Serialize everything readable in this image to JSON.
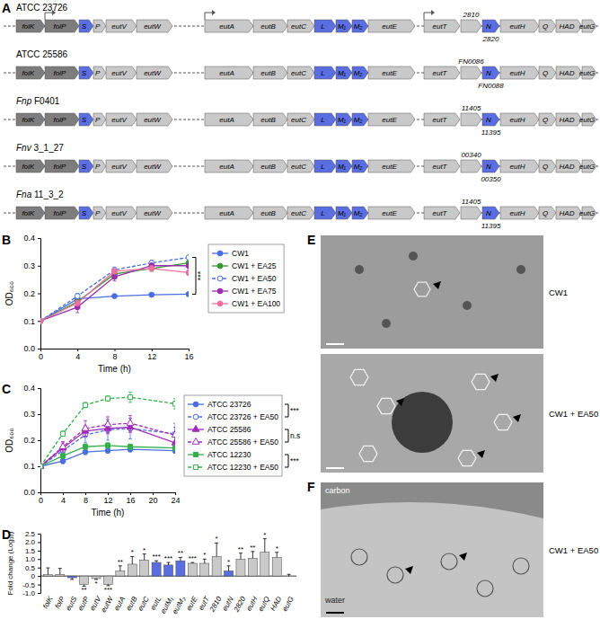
{
  "panel_labels": [
    "A",
    "B",
    "C",
    "D",
    "E",
    "F"
  ],
  "diagram": {
    "genes": [
      {
        "label": "folK",
        "color": "#7d7d7d"
      },
      {
        "label": "folP",
        "color": "#7d7d7d"
      },
      {
        "label": "S",
        "color": "#5b6ee1"
      },
      {
        "label": "P",
        "color": "#c9c9c9"
      },
      {
        "label": "eutV",
        "color": "#c9c9c9"
      },
      {
        "label": "eutW",
        "color": "#c9c9c9"
      },
      {
        "label": "eutA",
        "color": "#c9c9c9"
      },
      {
        "label": "eutB",
        "color": "#c9c9c9"
      },
      {
        "label": "eutC",
        "color": "#c9c9c9"
      },
      {
        "label": "L",
        "color": "#5b6ee1"
      },
      {
        "label": "M₁",
        "color": "#5b6ee1"
      },
      {
        "label": "M₂",
        "color": "#5b6ee1"
      },
      {
        "label": "eutE",
        "color": "#c9c9c9"
      },
      {
        "label": "eutT",
        "color": "#c9c9c9"
      },
      {
        "label": null,
        "color": "#c9c9c9"
      },
      {
        "label": "N",
        "color": "#5b6ee1"
      },
      {
        "label": "eutH",
        "color": "#c9c9c9"
      },
      {
        "label": "Q",
        "color": "#c9c9c9"
      },
      {
        "label": "HAD",
        "color": "#c9c9c9"
      },
      {
        "label": "eutG",
        "color": "#c9c9c9"
      }
    ],
    "strains": [
      {
        "name": "ATCC 23726",
        "locus_above": "2810",
        "locus_below": "2820"
      },
      {
        "name": "ATCC 25586",
        "locus_above": "FN0086",
        "locus_below": "FN0088"
      },
      {
        "name": "Fnp F0401",
        "locus_above": "11405",
        "locus_below": "11395"
      },
      {
        "name": "Fnv 3_1_27",
        "locus_above": "00340",
        "locus_below": "00350"
      },
      {
        "name": "Fna 11_3_2",
        "locus_above": "11405",
        "locus_below": "11395"
      }
    ]
  },
  "chart_data": [
    {
      "type": "line",
      "x": [
        0,
        4,
        8,
        12,
        16
      ],
      "xlim": [
        0,
        16
      ],
      "xticks": [
        0,
        4,
        8,
        12,
        16
      ],
      "ylim": [
        0,
        0.4
      ],
      "yticks": [
        {
          "value": 0,
          "label": "0.0"
        },
        0.1,
        0.2,
        0.3,
        0.4
      ],
      "x_label": "Time (h)",
      "y_label": "OD₆₀₀",
      "legend": "right",
      "series": [
        {
          "name": "CW1",
          "color": "#4a6fe3",
          "marker": "circle",
          "line_style": "solid",
          "values": [
            0.1,
            0.18,
            0.19,
            0.195,
            0.197
          ],
          "errors": [
            0.005,
            0.01,
            0.005,
            0.005,
            0.005
          ]
        },
        {
          "name": "CW1 + EA25",
          "color": "#2e9a2e",
          "marker": "circle",
          "line_style": "solid",
          "values": [
            0.1,
            0.17,
            0.27,
            0.29,
            0.31
          ],
          "errors": [
            0.005,
            0.01,
            0.01,
            0.01,
            0.01
          ]
        },
        {
          "name": "CW1 + EA50",
          "color": "#4a6fe3",
          "marker": "circle",
          "line_style": "dashed",
          "values": [
            0.1,
            0.19,
            0.285,
            0.31,
            0.33
          ],
          "errors": [
            0.005,
            0.01,
            0.01,
            0.01,
            0.005
          ]
        },
        {
          "name": "CW1 + EA75",
          "color": "#9b2fae",
          "marker": "circle",
          "line_style": "solid",
          "values": [
            0.1,
            0.15,
            0.26,
            0.3,
            0.3
          ],
          "errors": [
            0.005,
            0.02,
            0.015,
            0.01,
            0.01
          ]
        },
        {
          "name": "CW1 + EA100",
          "color": "#ef6fa0",
          "marker": "circle",
          "line_style": "solid",
          "values": [
            0.1,
            0.165,
            0.28,
            0.29,
            0.275
          ],
          "errors": [
            0.005,
            0.01,
            0.01,
            0.01,
            0.01
          ]
        }
      ],
      "significance": [
        {
          "series": [
            "CW1",
            "CW1 + EA50"
          ],
          "label": "***"
        }
      ]
    },
    {
      "type": "line",
      "x": [
        0,
        4,
        8,
        12,
        16,
        24
      ],
      "xlim": [
        0,
        24
      ],
      "xticks": [
        0,
        4,
        8,
        12,
        16,
        20,
        24
      ],
      "ylim": [
        0,
        0.4
      ],
      "yticks": [
        {
          "value": 0,
          "label": "0.0"
        },
        0.1,
        0.2,
        0.3,
        0.4
      ],
      "x_label": "Time (h)",
      "y_label": "OD₆₀₀",
      "legend": "right",
      "series": [
        {
          "name": "ATCC 23726",
          "color": "#4a6fe3",
          "marker": "circle",
          "line_style": "solid",
          "values": [
            0.1,
            0.12,
            0.155,
            0.16,
            0.165,
            0.16
          ],
          "errors": [
            0.005,
            0.01,
            0.01,
            0.01,
            0.01,
            0.01
          ]
        },
        {
          "name": "ATCC 23726 + EA50",
          "color": "#4a6fe3",
          "marker": "circle",
          "line_style": "dashed",
          "values": [
            0.1,
            0.16,
            0.22,
            0.24,
            0.245,
            0.225
          ],
          "errors": [
            0.005,
            0.02,
            0.03,
            0.04,
            0.04,
            0.04
          ]
        },
        {
          "name": "ATCC 25586",
          "color": "#a12bb8",
          "marker": "triangle",
          "line_style": "solid",
          "values": [
            0.1,
            0.17,
            0.235,
            0.245,
            0.25,
            0.19
          ],
          "errors": [
            0.005,
            0.02,
            0.02,
            0.02,
            0.02,
            0.03
          ]
        },
        {
          "name": "ATCC 25586 + EA50",
          "color": "#a12bb8",
          "marker": "triangle",
          "line_style": "dashed",
          "values": [
            0.1,
            0.175,
            0.245,
            0.26,
            0.265,
            0.22
          ],
          "errors": [
            0.005,
            0.02,
            0.03,
            0.03,
            0.03,
            0.03
          ]
        },
        {
          "name": "ATCC 12230",
          "color": "#34b04a",
          "marker": "square",
          "line_style": "solid",
          "values": [
            0.1,
            0.14,
            0.175,
            0.18,
            0.175,
            0.17
          ],
          "errors": [
            0.005,
            0.01,
            0.01,
            0.01,
            0.01,
            0.01
          ]
        },
        {
          "name": "ATCC 12230 + EA50",
          "color": "#34b04a",
          "marker": "square",
          "line_style": "dashed",
          "values": [
            0.1,
            0.225,
            0.335,
            0.36,
            0.365,
            0.34
          ],
          "errors": [
            0.005,
            0.01,
            0.01,
            0.01,
            0.02,
            0.02
          ]
        }
      ],
      "significance": [
        {
          "series": [
            "ATCC 23726",
            "ATCC 23726 + EA50"
          ],
          "label": "***"
        },
        {
          "series": [
            "ATCC 25586",
            "ATCC 25586 + EA50"
          ],
          "label": "n.s"
        },
        {
          "series": [
            "ATCC 12230",
            "ATCC 12230 + EA50"
          ],
          "label": "***"
        }
      ]
    },
    {
      "type": "bar",
      "categories": [
        "folK",
        "folP",
        "eutS",
        "eutP",
        "eutV",
        "eutW",
        "eutA",
        "eutB",
        "eutC",
        "eutL",
        "eutM₁",
        "eutM₂",
        "eutE",
        "eutT",
        "2810",
        "eutN",
        "2820",
        "eutH",
        "eutQ",
        "HAD",
        "eutG"
      ],
      "values": [
        0.08,
        0.1,
        -0.1,
        -0.5,
        -0.15,
        -0.5,
        0.3,
        0.7,
        0.95,
        0.8,
        0.65,
        0.9,
        0.75,
        0.75,
        1.15,
        0.3,
        1.0,
        1.05,
        1.4,
        1.1,
        0.0
      ],
      "errors": [
        0.4,
        0.35,
        0.1,
        0.1,
        0.05,
        0.07,
        0.3,
        0.45,
        0.35,
        0.1,
        0.15,
        0.2,
        0.05,
        0.25,
        0.8,
        0.3,
        0.35,
        0.4,
        0.8,
        0.3,
        0.1
      ],
      "significance": [
        null,
        null,
        null,
        "**",
        "*",
        "***",
        "**",
        "*",
        "*",
        "***",
        "***",
        "**",
        "***",
        "*",
        "*",
        "*",
        "**",
        "**",
        "*",
        "*",
        null
      ],
      "colors": [
        "#c9c9c9",
        "#c9c9c9",
        "#5b6ee1",
        "#c9c9c9",
        "#c9c9c9",
        "#c9c9c9",
        "#c9c9c9",
        "#c9c9c9",
        "#c9c9c9",
        "#5b6ee1",
        "#5b6ee1",
        "#5b6ee1",
        "#c9c9c9",
        "#c9c9c9",
        "#c9c9c9",
        "#5b6ee1",
        "#c9c9c9",
        "#c9c9c9",
        "#c9c9c9",
        "#c9c9c9",
        "#c9c9c9"
      ],
      "ylim": [
        -1,
        2.5
      ],
      "yticks": [
        {
          "value": -1,
          "label": "-1.0"
        },
        -0.5,
        0,
        0.5,
        {
          "value": 1,
          "label": "1.0"
        },
        1.5,
        {
          "value": 2,
          "label": "2.0"
        },
        2.5
      ],
      "y_label": "Fold change (Log₁₀)"
    }
  ],
  "micrographs": [
    {
      "label": "CW1"
    },
    {
      "label": "CW1 + EA50"
    },
    {
      "label": "CW1 + EA50",
      "annotations": [
        "carbon",
        "water"
      ]
    }
  ]
}
